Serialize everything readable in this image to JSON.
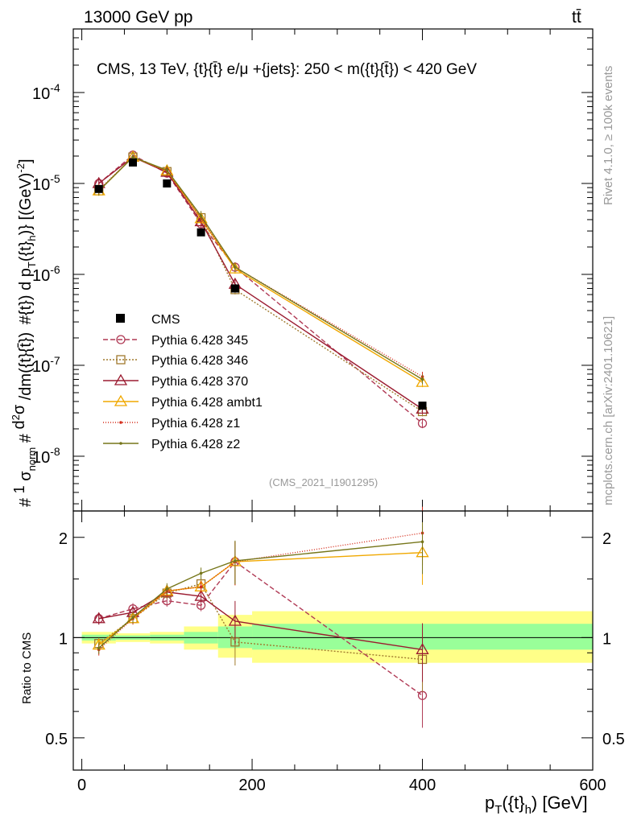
{
  "header": {
    "left": "13000 GeV pp",
    "right": "tt̄"
  },
  "side_text": {
    "rivet": "Rivet 4.1.0, ≥ 100k events",
    "site": "mcplots.cern.ch [arXiv:2401.10621]"
  },
  "chart_data": [
    {
      "type": "line",
      "panel": "main",
      "title": "CMS, 13 TeV, {t}{t̄} e/μ +{jets}: 250 < m({t}{t̄}) < 420 GeV",
      "analysis_id": "(CMS_2021_I1901295)",
      "ylabel": "1/σ_norm d²σ/dm(tt̄) dp_T(t_h) [(GeV)^-2]",
      "yscale": "log",
      "ylim": [
        2.5e-09,
        0.0005
      ],
      "xlim": [
        -10,
        600
      ],
      "y_ticks": [
        {
          "value": 1e-08,
          "label": "10^-8"
        },
        {
          "value": 1e-07,
          "label": "10^-7"
        },
        {
          "value": 1e-06,
          "label": "10^-6"
        },
        {
          "value": 1e-05,
          "label": "10^-5"
        },
        {
          "value": 0.0001,
          "label": "10^-4"
        }
      ],
      "x": [
        20,
        60,
        100,
        140,
        180,
        400
      ],
      "x_bins": [
        [
          0,
          40
        ],
        [
          40,
          80
        ],
        [
          80,
          120
        ],
        [
          120,
          160
        ],
        [
          160,
          200
        ],
        [
          200,
          600
        ]
      ],
      "data": {
        "name": "CMS",
        "values": [
          8.7e-06,
          1.7e-05,
          1e-05,
          2.9e-06,
          7e-07,
          3.6e-08
        ]
      },
      "series": [
        {
          "name": "Pythia 6.428 345",
          "color": "#b03a55",
          "dash": "6,3",
          "marker": "circle",
          "values": [
            1e-05,
            2.05e-05,
            1.3e-05,
            3.6e-06,
            1.2e-06,
            2.3e-08
          ]
        },
        {
          "name": "Pythia 6.428 346",
          "color": "#a07a2e",
          "dash": "2,2",
          "marker": "square",
          "values": [
            8.3e-06,
            1.95e-05,
            1.35e-05,
            4.2e-06,
            6.8e-07,
            3.1e-08
          ]
        },
        {
          "name": "Pythia 6.428 370",
          "color": "#9b1b30",
          "dash": "",
          "marker": "triangle",
          "values": [
            1e-05,
            1.95e-05,
            1.33e-05,
            3.8e-06,
            7.8e-07,
            3.3e-08
          ]
        },
        {
          "name": "Pythia 6.428 ambt1",
          "color": "#f0a800",
          "dash": "",
          "marker": "triangle",
          "values": [
            8.3e-06,
            1.95e-05,
            1.38e-05,
            4.1e-06,
            1.15e-06,
            6.5e-08
          ]
        },
        {
          "name": "Pythia 6.428 z1",
          "color": "#d42a18",
          "dash": "1,2",
          "marker": "dot",
          "values": [
            8.5e-06,
            1.95e-05,
            1.38e-05,
            4.1e-06,
            1.2e-06,
            7.5e-08
          ]
        },
        {
          "name": "Pythia 6.428 z2",
          "color": "#76761a",
          "dash": "",
          "marker": "dot",
          "values": [
            8.3e-06,
            1.95e-05,
            1.4e-05,
            4.4e-06,
            1.2e-06,
            7e-08
          ]
        }
      ]
    },
    {
      "type": "line",
      "panel": "ratio",
      "ylabel": "Ratio to CMS",
      "xlabel": "p_T({t}_h) [GeV]",
      "yscale": "log",
      "ylim": [
        0.4,
        2.4
      ],
      "xlim": [
        -10,
        600
      ],
      "x_ticks": [
        0,
        200,
        400,
        600
      ],
      "y_ticks": [
        0.5,
        1,
        2
      ],
      "x": [
        20,
        60,
        100,
        140,
        180,
        400
      ],
      "bands": [
        {
          "x0": 0,
          "x1": 40,
          "inner": [
            0.98,
            1.02
          ],
          "outer": [
            0.96,
            1.04
          ]
        },
        {
          "x0": 40,
          "x1": 80,
          "inner": [
            0.985,
            1.015
          ],
          "outer": [
            0.97,
            1.03
          ]
        },
        {
          "x0": 80,
          "x1": 120,
          "inner": [
            0.98,
            1.02
          ],
          "outer": [
            0.96,
            1.04
          ]
        },
        {
          "x0": 120,
          "x1": 160,
          "inner": [
            0.96,
            1.04
          ],
          "outer": [
            0.92,
            1.08
          ]
        },
        {
          "x0": 160,
          "x1": 200,
          "inner": [
            0.93,
            1.08
          ],
          "outer": [
            0.87,
            1.17
          ]
        },
        {
          "x0": 200,
          "x1": 600,
          "inner": [
            0.92,
            1.1
          ],
          "outer": [
            0.84,
            1.2
          ]
        }
      ],
      "series": [
        {
          "name": "Pythia 6.428 345",
          "values": [
            1.14,
            1.22,
            1.29,
            1.25,
            1.69,
            0.67
          ]
        },
        {
          "name": "Pythia 6.428 346",
          "values": [
            0.96,
            1.14,
            1.36,
            1.45,
            0.97,
            0.86
          ]
        },
        {
          "name": "Pythia 6.428 370",
          "values": [
            1.14,
            1.19,
            1.37,
            1.33,
            1.12,
            0.92
          ]
        },
        {
          "name": "Pythia 6.428 ambt1",
          "values": [
            0.95,
            1.14,
            1.38,
            1.42,
            1.69,
            1.8
          ]
        },
        {
          "name": "Pythia 6.428 z1",
          "values": [
            0.92,
            1.14,
            1.38,
            1.42,
            1.69,
            2.06
          ]
        },
        {
          "name": "Pythia 6.428 z2",
          "values": [
            0.93,
            1.15,
            1.4,
            1.56,
            1.7,
            1.94
          ]
        }
      ]
    }
  ]
}
